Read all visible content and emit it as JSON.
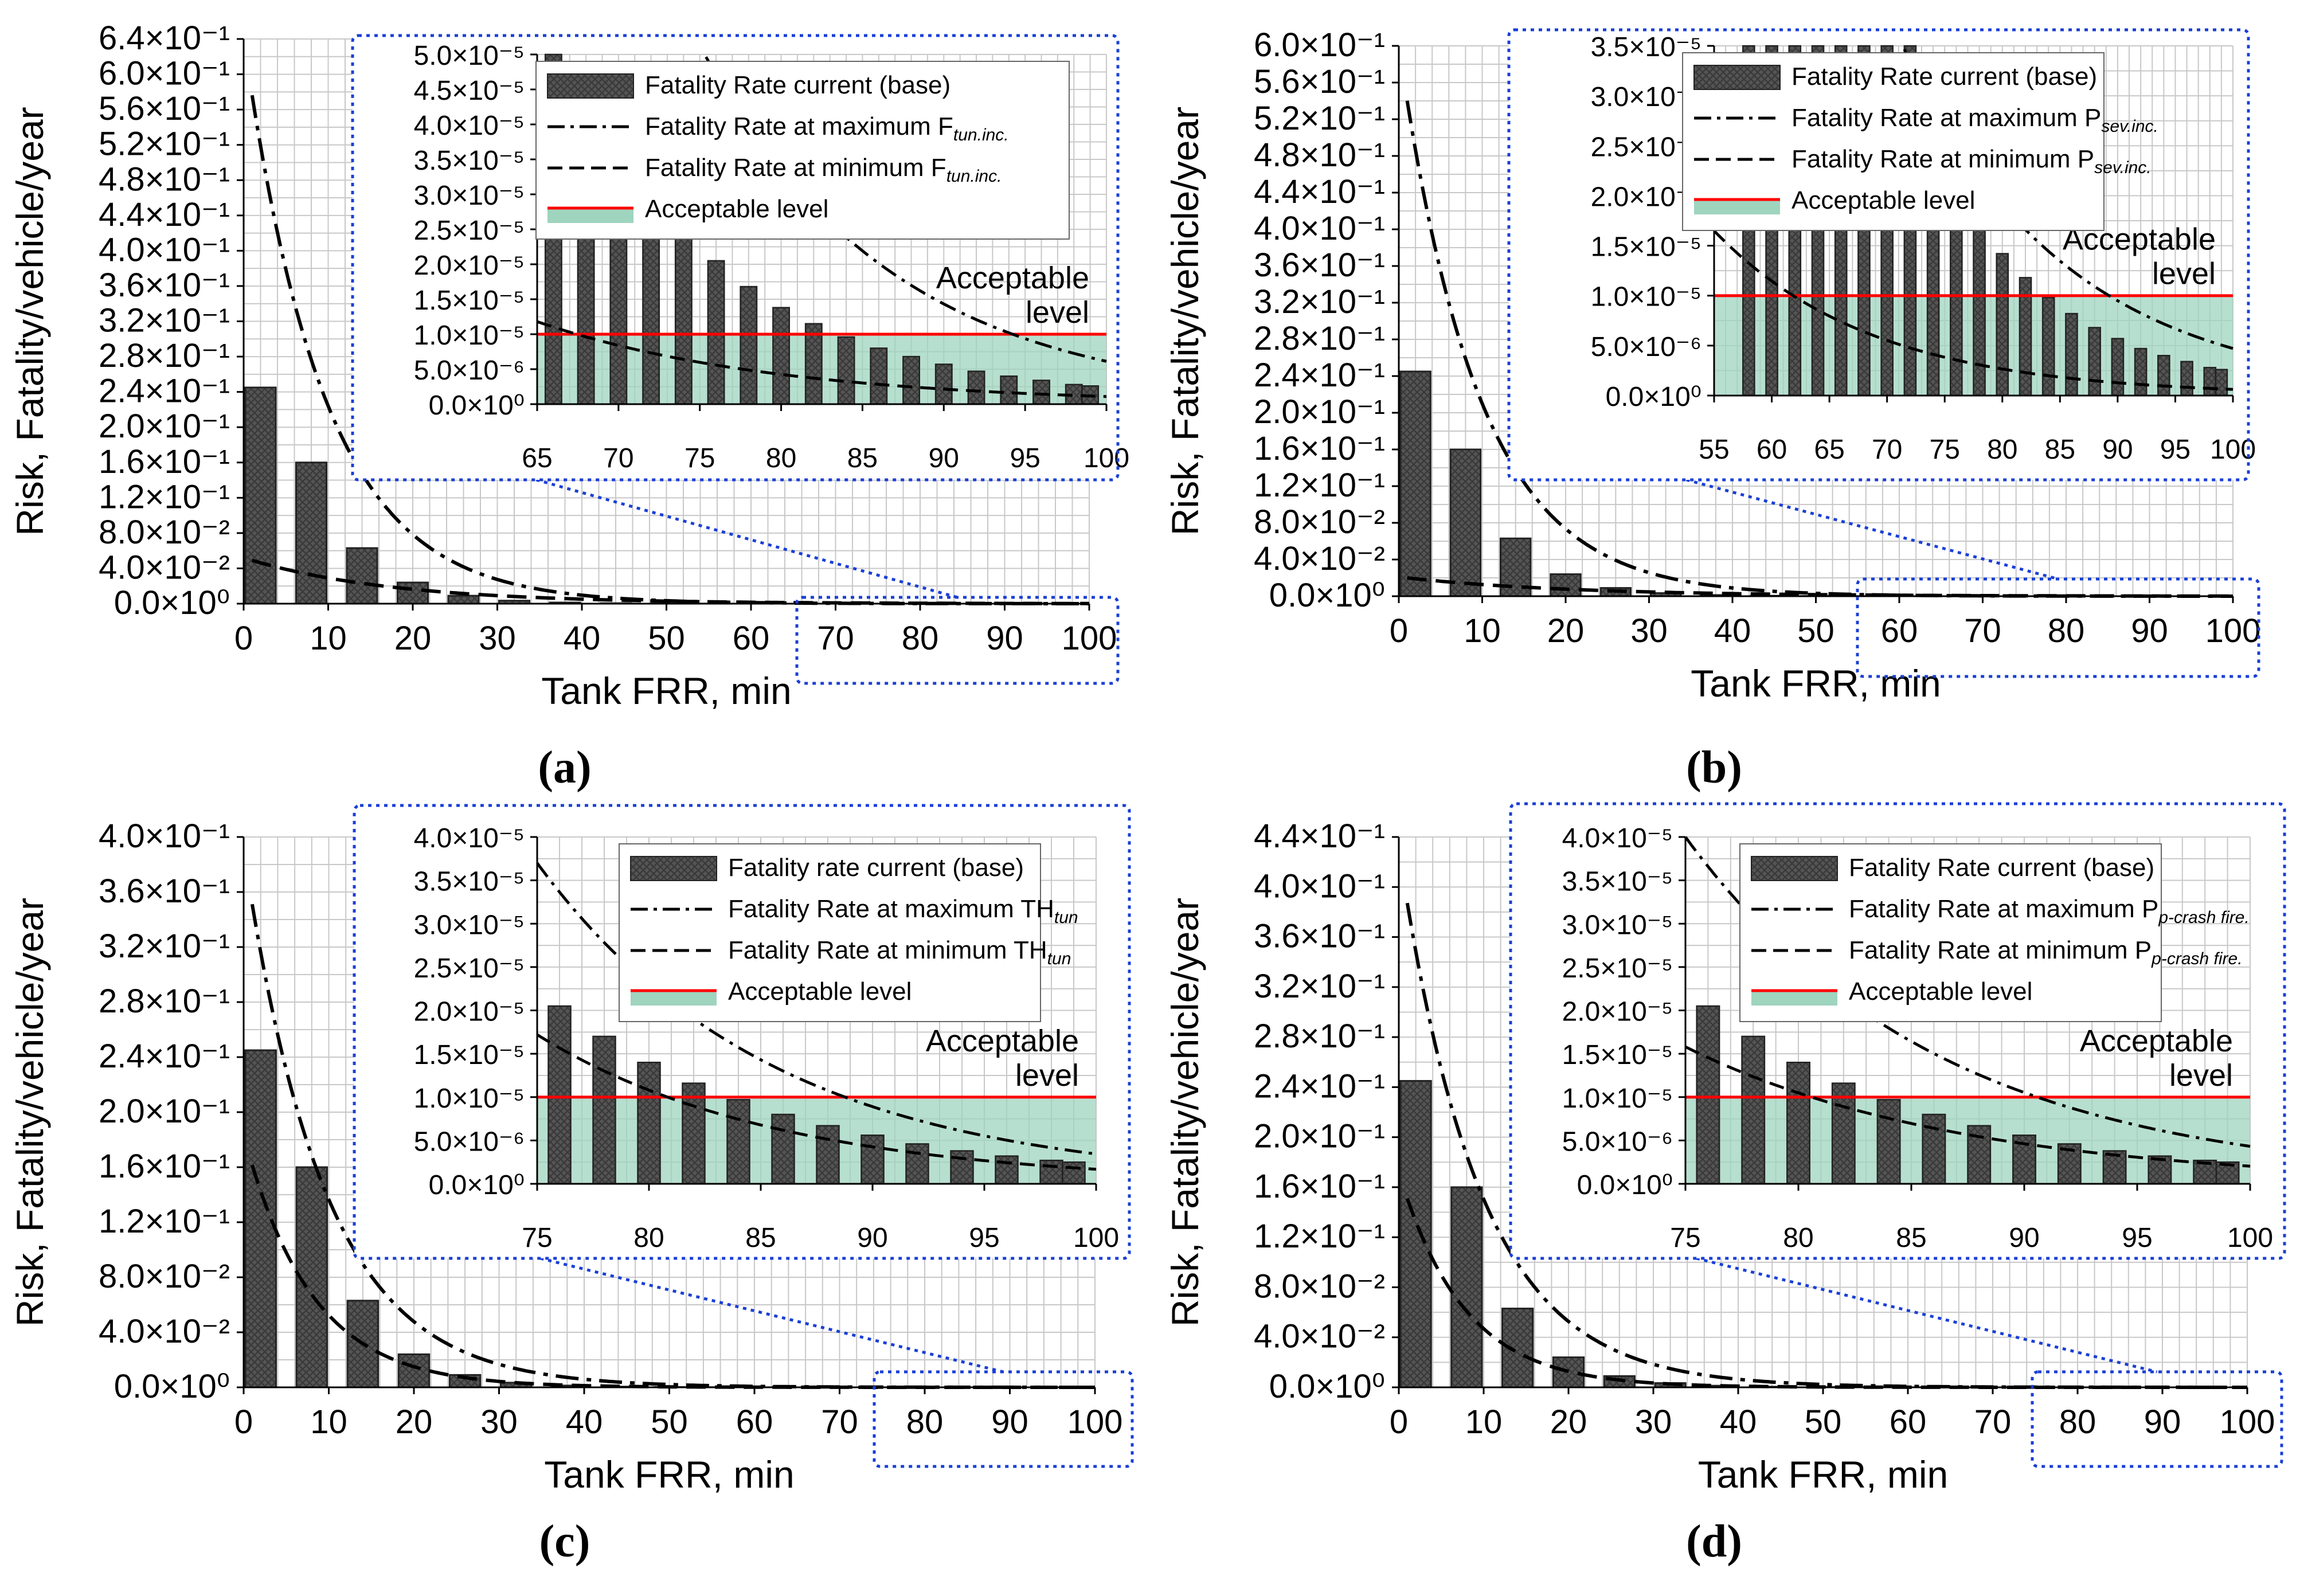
{
  "chart_data": [
    {
      "panel": "(a)",
      "type": "bar",
      "xlabel": "Tank FRR, min",
      "ylabel": "Risk, Fatality/vehicle/year",
      "xlim": [
        0,
        100
      ],
      "ylim": [
        0,
        0.64
      ],
      "x_ticks": [
        "0",
        "10",
        "20",
        "30",
        "40",
        "50",
        "60",
        "70",
        "80",
        "90",
        "100"
      ],
      "y_ticks": [
        "0.0×10⁰",
        "4.0×10⁻²",
        "8.0×10⁻²",
        "1.2×10⁻¹",
        "1.6×10⁻¹",
        "2.0×10⁻¹",
        "2.4×10⁻¹",
        "2.8×10⁻¹",
        "3.2×10⁻¹",
        "3.6×10⁻¹",
        "4.0×10⁻¹",
        "4.4×10⁻¹",
        "4.8×10⁻¹",
        "5.2×10⁻¹",
        "5.6×10⁻¹",
        "6.0×10⁻¹",
        "6.4×10⁻¹"
      ],
      "grid": true,
      "bars_x": [
        2,
        8,
        14,
        20,
        26,
        32,
        38,
        44,
        50,
        56,
        62,
        68,
        74,
        80,
        86,
        92,
        98
      ],
      "bars_y": [
        0.245,
        0.16,
        0.063,
        0.024,
        0.009,
        0.0034,
        0.0013,
        0.0005,
        0.0002,
        0.0001,
        5e-05,
        3e-05,
        2e-05,
        1.4e-05,
        8e-06,
        5e-06,
        3e-06
      ],
      "line_max": {
        "y0": 0.64,
        "decay": 0.105
      },
      "line_min": {
        "y0": 0.052,
        "decay": 0.058
      },
      "inset": {
        "xlim": [
          65,
          100
        ],
        "ylim": [
          0,
          5e-05
        ],
        "x_ticks": [
          "65",
          "70",
          "75",
          "80",
          "85",
          "90",
          "95",
          "100"
        ],
        "y_ticks": [
          "0.0×10⁰",
          "5.0×10⁻⁶",
          "1.0×10⁻⁵",
          "1.5×10⁻⁵",
          "2.0×10⁻⁵",
          "2.5×10⁻⁵",
          "3.0×10⁻⁵",
          "3.5×10⁻⁵",
          "4.0×10⁻⁵",
          "4.5×10⁻⁵",
          "5.0×10⁻⁵"
        ],
        "bars_x": [
          66,
          68,
          70,
          72,
          74,
          76,
          78,
          80,
          82,
          84,
          86,
          88,
          90,
          92,
          94,
          96,
          98,
          99
        ],
        "bars_y": [
          5.5e-05,
          4.5e-05,
          3.7e-05,
          3.1e-05,
          2.5e-05,
          2.05e-05,
          1.68e-05,
          1.38e-05,
          1.15e-05,
          9.6e-06,
          8e-06,
          6.8e-06,
          5.7e-06,
          4.7e-06,
          4e-06,
          3.4e-06,
          2.8e-06,
          2.6e-06
        ],
        "line_max": {
          "x0": 65,
          "y0": 0.00012,
          "decay": 0.085
        },
        "line_min": {
          "x0": 65,
          "y0": 1.18e-05,
          "decay": 0.068
        },
        "acceptable": 1e-05,
        "acceptable_label": [
          "Acceptable",
          "level"
        ],
        "legend": [
          {
            "text": "Fatality Rate current (base)",
            "sub": ""
          },
          {
            "text": "Fatality Rate at maximum F",
            "sub": "tun.inc."
          },
          {
            "text": "Fatality Rate at minimum F",
            "sub": "tun.inc."
          },
          {
            "text": "Acceptable level",
            "sub": ""
          }
        ]
      }
    },
    {
      "panel": "(b)",
      "type": "bar",
      "xlabel": "Tank FRR, min",
      "ylabel": "Risk, Fatality/vehicle/year",
      "xlim": [
        0,
        100
      ],
      "ylim": [
        0,
        0.6
      ],
      "x_ticks": [
        "0",
        "10",
        "20",
        "30",
        "40",
        "50",
        "60",
        "70",
        "80",
        "90",
        "100"
      ],
      "y_ticks": [
        "0.0×10⁰",
        "4.0×10⁻²",
        "8.0×10⁻²",
        "1.2×10⁻¹",
        "1.6×10⁻¹",
        "2.0×10⁻¹",
        "2.4×10⁻¹",
        "2.8×10⁻¹",
        "3.2×10⁻¹",
        "3.6×10⁻¹",
        "4.0×10⁻¹",
        "4.4×10⁻¹",
        "4.8×10⁻¹",
        "5.2×10⁻¹",
        "5.6×10⁻¹",
        "6.0×10⁻¹"
      ],
      "grid": true,
      "bars_x": [
        2,
        8,
        14,
        20,
        26,
        32,
        38,
        44,
        50,
        56,
        62,
        68,
        74,
        80,
        86,
        92,
        98
      ],
      "bars_y": [
        0.245,
        0.16,
        0.063,
        0.024,
        0.009,
        0.0034,
        0.0013,
        0.0005,
        0.0002,
        0.0001,
        5e-05,
        3e-05,
        2e-05,
        1.4e-05,
        8e-06,
        5e-06,
        3e-06
      ],
      "line_max": {
        "y0": 0.6,
        "decay": 0.105
      },
      "line_min": {
        "y0": 0.021,
        "decay": 0.05
      },
      "inset": {
        "xlim": [
          55,
          100
        ],
        "ylim": [
          0,
          3.5e-05
        ],
        "x_ticks": [
          "55",
          "60",
          "65",
          "70",
          "75",
          "80",
          "85",
          "90",
          "95",
          "100"
        ],
        "y_ticks": [
          "0.0×10⁰",
          "5.0×10⁻⁶",
          "1.0×10⁻⁵",
          "1.5×10⁻⁵",
          "2.0×10⁻⁵",
          "2.5×10⁻⁵",
          "3.0×10⁻⁵",
          "3.5×10⁻⁵"
        ],
        "bars_x": [
          58,
          60,
          62,
          64,
          66,
          68,
          70,
          72,
          74,
          76,
          78,
          80,
          82,
          84,
          86,
          88,
          90,
          92,
          94,
          96,
          98,
          99
        ],
        "bars_y": [
          0.000125,
          0.000106,
          9e-05,
          7.6e-05,
          6.4e-05,
          5.4e-05,
          4.5e-05,
          3.8e-05,
          3.2e-05,
          2.7e-05,
          2.1e-05,
          1.42e-05,
          1.18e-05,
          9.8e-06,
          8.2e-06,
          6.8e-06,
          5.7e-06,
          4.7e-06,
          4e-06,
          3.4e-06,
          2.8e-06,
          2.6e-06
        ],
        "line_max": {
          "x0": 55,
          "y0": 0.00011,
          "decay": 0.07
        },
        "line_min": {
          "x0": 55,
          "y0": 1.65e-05,
          "decay": 0.073
        },
        "acceptable": 1e-05,
        "acceptable_label": [
          "Acceptable",
          "level"
        ],
        "legend": [
          {
            "text": "Fatality Rate current (base)",
            "sub": ""
          },
          {
            "text": "Fatality Rate at maximum P",
            "sub": "sev.inc."
          },
          {
            "text": "Fatality Rate at minimum P",
            "sub": "sev.inc."
          },
          {
            "text": "Acceptable level",
            "sub": ""
          }
        ]
      }
    },
    {
      "panel": "(c)",
      "type": "bar",
      "xlabel": "Tank FRR, min",
      "ylabel": "Risk, Fatality/vehicle/year",
      "xlim": [
        0,
        100
      ],
      "ylim": [
        0,
        0.4
      ],
      "x_ticks": [
        "0",
        "10",
        "20",
        "30",
        "40",
        "50",
        "60",
        "70",
        "80",
        "90",
        "100"
      ],
      "y_ticks": [
        "0.0×10⁰",
        "4.0×10⁻²",
        "8.0×10⁻²",
        "1.2×10⁻¹",
        "1.6×10⁻¹",
        "2.0×10⁻¹",
        "2.4×10⁻¹",
        "2.8×10⁻¹",
        "3.2×10⁻¹",
        "3.6×10⁻¹",
        "4.0×10⁻¹"
      ],
      "grid": true,
      "bars_x": [
        2,
        8,
        14,
        20,
        26,
        32,
        38,
        44,
        50,
        56,
        62,
        68,
        74,
        80,
        86,
        92,
        98
      ],
      "bars_y": [
        0.245,
        0.16,
        0.063,
        0.024,
        0.009,
        0.0034,
        0.0013,
        0.0005,
        0.0002,
        0.0001,
        5e-05,
        3e-05,
        2e-05,
        1.4e-05,
        8e-06,
        5e-06,
        3e-06
      ],
      "line_max": {
        "y0": 0.39,
        "decay": 0.105
      },
      "line_min": {
        "y0": 0.183,
        "decay": 0.125
      },
      "inset": {
        "xlim": [
          75,
          100
        ],
        "ylim": [
          0,
          4e-05
        ],
        "x_ticks": [
          "75",
          "80",
          "85",
          "90",
          "95",
          "100"
        ],
        "y_ticks": [
          "0.0×10⁰",
          "5.0×10⁻⁶",
          "1.0×10⁻⁵",
          "1.5×10⁻⁵",
          "2.0×10⁻⁵",
          "2.5×10⁻⁵",
          "3.0×10⁻⁵",
          "3.5×10⁻⁵",
          "4.0×10⁻⁵"
        ],
        "bars_x": [
          76,
          78,
          80,
          82,
          84,
          86,
          88,
          90,
          92,
          94,
          96,
          98,
          99
        ],
        "bars_y": [
          2.05e-05,
          1.7e-05,
          1.4e-05,
          1.16e-05,
          9.7e-06,
          8e-06,
          6.7e-06,
          5.6e-06,
          4.6e-06,
          3.8e-06,
          3.2e-06,
          2.7e-06,
          2.5e-06
        ],
        "line_max": {
          "x0": 75,
          "y0": 3.7e-05,
          "decay": 0.095
        },
        "line_min": {
          "x0": 75,
          "y0": 1.72e-05,
          "decay": 0.093
        },
        "acceptable": 1e-05,
        "acceptable_label": [
          "Acceptable",
          "level"
        ],
        "legend": [
          {
            "text": "Fatality rate current (base)",
            "sub": ""
          },
          {
            "text": "Fatality Rate at maximum TH",
            "sub": "tun"
          },
          {
            "text": "Fatality Rate at minimum TH",
            "sub": "tun"
          },
          {
            "text": "Acceptable level",
            "sub": ""
          }
        ]
      }
    },
    {
      "panel": "(d)",
      "type": "bar",
      "xlabel": "Tank FRR, min",
      "ylabel": "Risk, Fatality/vehicle/year",
      "xlim": [
        0,
        100
      ],
      "ylim": [
        0,
        0.44
      ],
      "x_ticks": [
        "0",
        "10",
        "20",
        "30",
        "40",
        "50",
        "60",
        "70",
        "80",
        "90",
        "100"
      ],
      "y_ticks": [
        "0.0×10⁰",
        "4.0×10⁻²",
        "8.0×10⁻²",
        "1.2×10⁻¹",
        "1.6×10⁻¹",
        "2.0×10⁻¹",
        "2.4×10⁻¹",
        "2.8×10⁻¹",
        "3.2×10⁻¹",
        "3.6×10⁻¹",
        "4.0×10⁻¹",
        "4.4×10⁻¹"
      ],
      "grid": true,
      "bars_x": [
        2,
        8,
        14,
        20,
        26,
        32,
        38,
        44,
        50,
        56,
        62,
        68,
        74,
        80,
        86,
        92,
        98
      ],
      "bars_y": [
        0.245,
        0.16,
        0.063,
        0.024,
        0.009,
        0.0034,
        0.0013,
        0.0005,
        0.0002,
        0.0001,
        5e-05,
        3e-05,
        2e-05,
        1.4e-05,
        8e-06,
        5e-06,
        3e-06
      ],
      "line_max": {
        "y0": 0.43,
        "decay": 0.105
      },
      "line_min": {
        "y0": 0.172,
        "decay": 0.13
      },
      "inset": {
        "xlim": [
          75,
          100
        ],
        "ylim": [
          0,
          4e-05
        ],
        "x_ticks": [
          "75",
          "80",
          "85",
          "90",
          "95",
          "100"
        ],
        "y_ticks": [
          "0.0×10⁰",
          "5.0×10⁻⁶",
          "1.0×10⁻⁵",
          "1.5×10⁻⁵",
          "2.0×10⁻⁵",
          "2.5×10⁻⁵",
          "3.0×10⁻⁵",
          "3.5×10⁻⁵",
          "4.0×10⁻⁵"
        ],
        "bars_x": [
          76,
          78,
          80,
          82,
          84,
          86,
          88,
          90,
          92,
          94,
          96,
          98,
          99
        ],
        "bars_y": [
          2.05e-05,
          1.7e-05,
          1.4e-05,
          1.16e-05,
          9.7e-06,
          8e-06,
          6.7e-06,
          5.6e-06,
          4.6e-06,
          3.8e-06,
          3.2e-06,
          2.7e-06,
          2.5e-06
        ],
        "line_max": {
          "x0": 75,
          "y0": 4e-05,
          "decay": 0.089
        },
        "line_min": {
          "x0": 75,
          "y0": 1.58e-05,
          "decay": 0.082
        },
        "acceptable": 1e-05,
        "acceptable_label": [
          "Acceptable",
          "level"
        ],
        "legend": [
          {
            "text": "Fatality Rate current (base)",
            "sub": ""
          },
          {
            "text": "Fatality Rate at maximum P",
            "sub": "p-crash fire."
          },
          {
            "text": "Fatality Rate at minimum P",
            "sub": "p-crash fire."
          },
          {
            "text": "Acceptable level",
            "sub": ""
          }
        ]
      }
    }
  ],
  "colors": {
    "bar_fill": "#555555",
    "bar_edge": "#222222",
    "grid": "#c8c8c8",
    "acceptable_line": "#ff0000",
    "acceptable_fill": "#9fd4bf",
    "zoom_box": "#1a3fd6",
    "lines": "#000000"
  },
  "panel_labels": [
    "(a)",
    "(b)",
    "(c)",
    "(d)"
  ]
}
